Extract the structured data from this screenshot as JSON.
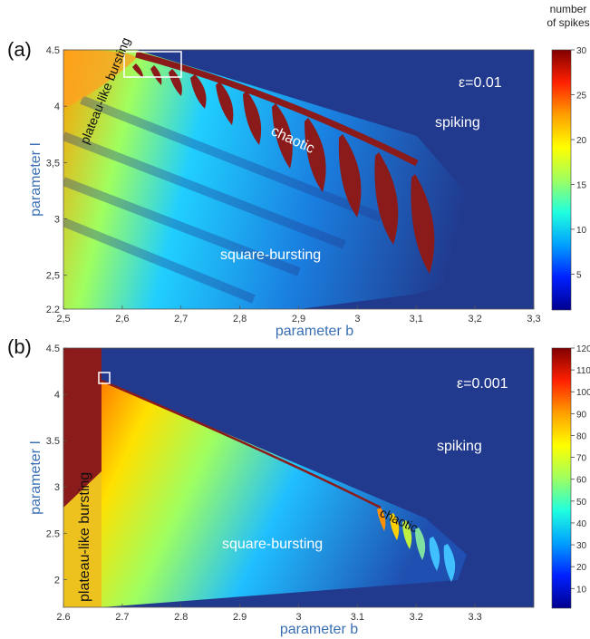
{
  "colors": {
    "background": "#213a8e",
    "chaotic": "#8b1a1a",
    "colormap": [
      "#00008f",
      "#0020ff",
      "#00a0ff",
      "#20ffdf",
      "#9fff60",
      "#ffff00",
      "#ff9f00",
      "#ff2000",
      "#800000"
    ]
  },
  "chart_data": [
    {
      "type": "heatmap",
      "panel_label": "(a)",
      "xlabel": "parameter b",
      "ylabel": "parameter I",
      "xlim": [
        2.5,
        3.3
      ],
      "ylim": [
        2.2,
        4.5
      ],
      "xticks": [
        "2,5",
        "2,6",
        "2,7",
        "2,8",
        "2,9",
        "3",
        "3,1",
        "3,2",
        "3,3"
      ],
      "yticks": [
        "2.2",
        "2,5",
        "3",
        "3,5",
        "4",
        "4.5"
      ],
      "annotation": "ε=0.01",
      "colorbar": {
        "title_line1": "number",
        "title_line2": "of spikes",
        "min": 1,
        "max": 30,
        "ticks": [
          "5",
          "10",
          "15",
          "20",
          "25",
          "30"
        ]
      },
      "regions": {
        "spiking": "spiking",
        "square": "square-bursting",
        "plateau": "plateau-like bursting",
        "chaotic": "chaotic"
      }
    },
    {
      "type": "heatmap",
      "panel_label": "(b)",
      "xlabel": "parameter b",
      "ylabel": "parameter I",
      "xlim": [
        2.6,
        3.4
      ],
      "ylim": [
        1.7,
        4.5
      ],
      "xticks": [
        "2.6",
        "2.7",
        "2.8",
        "2.9",
        "3",
        "3.1",
        "3.2",
        "3.3"
      ],
      "yticks": [
        "2",
        "2.5",
        "3",
        "3.5",
        "4",
        "4.5"
      ],
      "annotation": "ε=0.001",
      "colorbar": {
        "min": 1,
        "max": 120,
        "ticks": [
          "10",
          "20",
          "30",
          "40",
          "50",
          "60",
          "70",
          "80",
          "90",
          "100",
          "110",
          "120"
        ]
      },
      "regions": {
        "spiking": "spiking",
        "square": "square-bursting",
        "plateau": "plateau-like bursting",
        "chaotic": "chaotic"
      }
    }
  ]
}
